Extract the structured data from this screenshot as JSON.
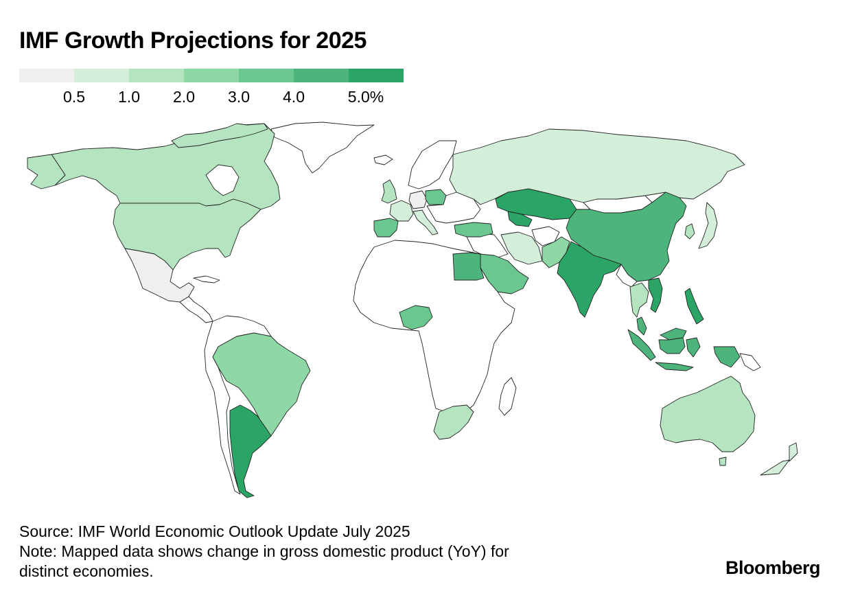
{
  "title": "IMF Growth Projections for 2025",
  "legend": {
    "colors": [
      "#efefef",
      "#d3eed9",
      "#b4e4c0",
      "#8dd8a4",
      "#6bc790",
      "#4db57b",
      "#2aa566"
    ],
    "ticks": [
      "0.5",
      "1.0",
      "2.0",
      "3.0",
      "4.0",
      "5.0%"
    ]
  },
  "map": {
    "no_data_color": "#ffffff",
    "countries": [
      {
        "name": "Canada",
        "bin": 2
      },
      {
        "name": "United States",
        "bin": 2
      },
      {
        "name": "Mexico",
        "bin": 0
      },
      {
        "name": "Brazil",
        "bin": 3
      },
      {
        "name": "Argentina",
        "bin": 6
      },
      {
        "name": "Russia",
        "bin": 1
      },
      {
        "name": "Kazakhstan",
        "bin": 6
      },
      {
        "name": "Uzbekistan",
        "bin": 6
      },
      {
        "name": "China",
        "bin": 5
      },
      {
        "name": "India",
        "bin": 6
      },
      {
        "name": "Pakistan",
        "bin": 3
      },
      {
        "name": "Iran",
        "bin": 1
      },
      {
        "name": "Saudi Arabia",
        "bin": 4
      },
      {
        "name": "Egypt",
        "bin": 5
      },
      {
        "name": "Turkey",
        "bin": 4
      },
      {
        "name": "Poland",
        "bin": 4
      },
      {
        "name": "Germany",
        "bin": 0
      },
      {
        "name": "France",
        "bin": 1
      },
      {
        "name": "Spain",
        "bin": 4
      },
      {
        "name": "United Kingdom",
        "bin": 2
      },
      {
        "name": "Italy",
        "bin": 1
      },
      {
        "name": "Nigeria",
        "bin": 4
      },
      {
        "name": "South Africa",
        "bin": 2
      },
      {
        "name": "Japan",
        "bin": 1
      },
      {
        "name": "South Korea",
        "bin": 2
      },
      {
        "name": "Thailand",
        "bin": 2
      },
      {
        "name": "Vietnam",
        "bin": 6
      },
      {
        "name": "Philippines",
        "bin": 6
      },
      {
        "name": "Malaysia",
        "bin": 5
      },
      {
        "name": "Indonesia",
        "bin": 5
      },
      {
        "name": "Australia",
        "bin": 2
      },
      {
        "name": "New Zealand",
        "bin": 1
      }
    ]
  },
  "footnote": {
    "source": "Source: IMF World Economic Outlook Update July 2025",
    "note_line1": "Note: Mapped data shows change in gross domestic product (YoY) for",
    "note_line2": "distinct economies."
  },
  "brand": "Bloomberg"
}
